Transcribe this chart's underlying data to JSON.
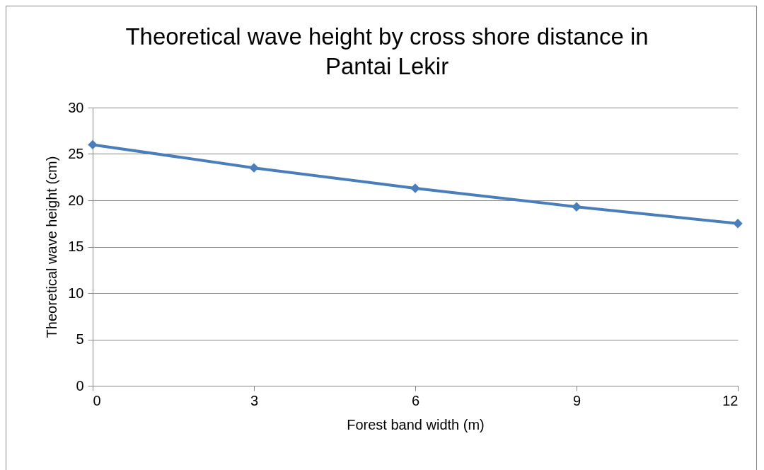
{
  "chart_data": {
    "type": "line",
    "title": "Theoretical wave height by cross shore distance in Pantai Lekir",
    "xlabel": "Forest band width (m)",
    "ylabel": "Theoretical wave height (cm)",
    "x": [
      0,
      3,
      6,
      9,
      12
    ],
    "series": [
      {
        "color": "#4a7ebb",
        "values": [
          26,
          23.5,
          21.3,
          19.3,
          17.5
        ]
      }
    ],
    "xlim": [
      0,
      12
    ],
    "xticks": [
      0,
      3,
      6,
      9,
      12
    ],
    "ylim": [
      0,
      30
    ],
    "yticks": [
      0,
      5,
      10,
      15,
      20,
      25,
      30
    ],
    "grid": "y",
    "marker": "diamond",
    "line_style": "solid"
  }
}
